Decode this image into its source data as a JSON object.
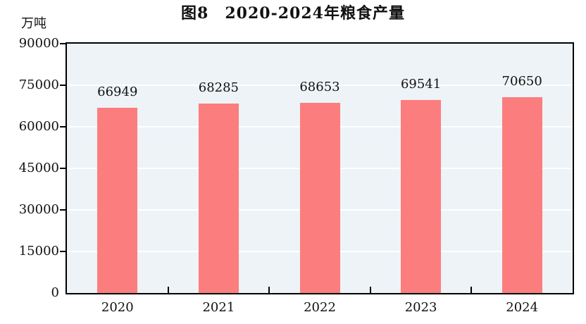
{
  "chart_data": {
    "type": "bar",
    "title": "图8　2020-2024年粮食产量",
    "unit_label": "万吨",
    "categories": [
      "2020",
      "2021",
      "2022",
      "2023",
      "2024"
    ],
    "values": [
      66949,
      68285,
      68653,
      69541,
      70650
    ],
    "value_labels": [
      "66949",
      "68285",
      "68653",
      "69541",
      "70650"
    ],
    "xlabel": "",
    "ylabel": "万吨",
    "ylim": [
      0,
      90000
    ],
    "yticks": [
      0,
      15000,
      30000,
      45000,
      60000,
      75000,
      90000
    ],
    "ytick_labels": [
      "0",
      "15000",
      "30000",
      "45000",
      "60000",
      "75000",
      "90000"
    ],
    "grid": true,
    "gridlines": "horizontal-white",
    "legend": "none",
    "colors": {
      "bar": "#FC7D7D",
      "plot_background": "#EDF3F7",
      "gridline": "#FFFFFF",
      "axis": "#000000",
      "text": "#111111"
    }
  }
}
